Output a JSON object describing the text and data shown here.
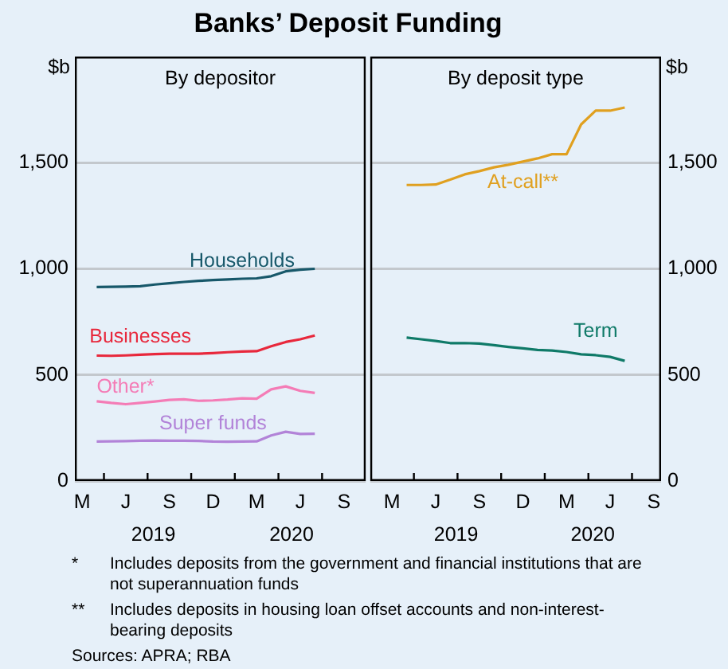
{
  "chart_data": [
    {
      "type": "line",
      "title": "Banks’ Deposit Funding",
      "subtitle": "By depositor",
      "ylabel": "$b",
      "categories": [
        "M",
        null,
        null,
        "J",
        null,
        null,
        "S",
        null,
        null,
        "D",
        null,
        null,
        "M",
        null,
        null,
        "J",
        null,
        null,
        "S",
        null
      ],
      "ylim": [
        0,
        2000
      ],
      "yticks": [
        0,
        500,
        {
          "value": 1000,
          "label": "1,000"
        },
        {
          "value": 1500,
          "label": "1,500"
        }
      ],
      "grid": "y",
      "series": [
        {
          "name": "Households",
          "color": "#17586a",
          "values": [
            null,
            914,
            915,
            916,
            918,
            926,
            932,
            938,
            943,
            947,
            950,
            953,
            955,
            965,
            988,
            996,
            1000,
            null,
            null,
            null
          ]
        },
        {
          "name": "Businesses",
          "color": "#e8283c",
          "values": [
            null,
            591,
            590,
            592,
            595,
            598,
            600,
            600,
            600,
            603,
            607,
            610,
            612,
            635,
            655,
            668,
            686,
            null,
            null,
            null
          ]
        },
        {
          "name": "Other*",
          "color": "#f47cb6",
          "values": [
            null,
            376,
            368,
            362,
            368,
            375,
            382,
            385,
            378,
            380,
            384,
            390,
            388,
            432,
            446,
            425,
            415,
            null,
            null,
            null
          ]
        },
        {
          "name": "Super funds",
          "color": "#b283d8",
          "values": [
            null,
            186,
            187,
            188,
            190,
            191,
            190,
            190,
            189,
            186,
            185,
            186,
            187,
            215,
            232,
            222,
            223,
            null,
            null,
            null
          ]
        }
      ],
      "annotations": [
        "2019",
        "2020"
      ]
    },
    {
      "type": "line",
      "subtitle": "By deposit type",
      "y2label": "$b",
      "categories": [
        null,
        "M",
        null,
        null,
        "J",
        null,
        null,
        "S",
        null,
        null,
        "D",
        null,
        null,
        "M",
        null,
        null,
        "J",
        null,
        null,
        "S"
      ],
      "y2lim": [
        0,
        2000
      ],
      "y2ticks": [
        0,
        500,
        {
          "value": 1000,
          "label": "1,000"
        },
        {
          "value": 1500,
          "label": "1,500"
        }
      ],
      "grid": "y",
      "series": [
        {
          "name": "At-call**",
          "color": "#e0a020",
          "axis": "y2",
          "values": [
            null,
            null,
            1395,
            1395,
            1397,
            1420,
            1445,
            1460,
            1478,
            1490,
            1505,
            1520,
            1540,
            1540,
            1680,
            1745,
            1745,
            1760,
            null,
            null
          ]
        },
        {
          "name": "Term",
          "color": "#0f7a68",
          "axis": "y2",
          "values": [
            null,
            null,
            676,
            668,
            660,
            650,
            650,
            648,
            640,
            632,
            625,
            618,
            615,
            608,
            597,
            593,
            585,
            566,
            null,
            null
          ]
        }
      ],
      "annotations": [
        "2019",
        "2020",
        "* Includes deposits from the government and financial institutions that are not superannuation funds",
        "** Includes deposits in housing loan offset accounts and non-interest-bearing deposits",
        "Sources: APRA; RBA"
      ]
    }
  ]
}
